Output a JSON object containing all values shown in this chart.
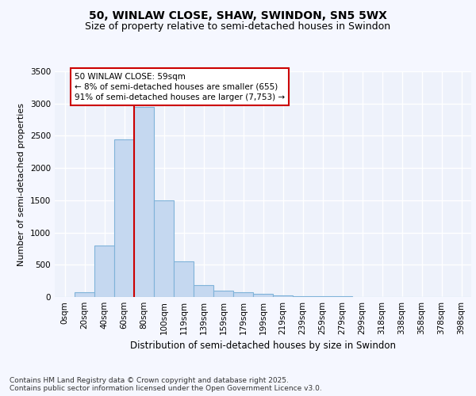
{
  "title1": "50, WINLAW CLOSE, SHAW, SWINDON, SN5 5WX",
  "title2": "Size of property relative to semi-detached houses in Swindon",
  "xlabel": "Distribution of semi-detached houses by size in Swindon",
  "ylabel": "Number of semi-detached properties",
  "categories": [
    "0sqm",
    "20sqm",
    "40sqm",
    "60sqm",
    "80sqm",
    "100sqm",
    "119sqm",
    "139sqm",
    "159sqm",
    "179sqm",
    "199sqm",
    "219sqm",
    "239sqm",
    "259sqm",
    "279sqm",
    "299sqm",
    "318sqm",
    "338sqm",
    "358sqm",
    "378sqm",
    "398sqm"
  ],
  "values": [
    5,
    75,
    800,
    2450,
    2950,
    1500,
    550,
    180,
    100,
    75,
    50,
    25,
    15,
    10,
    8,
    5,
    5,
    4,
    3,
    2,
    1
  ],
  "bar_color": "#c5d8f0",
  "bar_edge_color": "#7fb3d9",
  "red_line_index": 3.5,
  "annotation_text": "50 WINLAW CLOSE: 59sqm\n← 8% of semi-detached houses are smaller (655)\n91% of semi-detached houses are larger (7,753) →",
  "annotation_box_facecolor": "#ffffff",
  "annotation_box_edgecolor": "#cc0000",
  "ylim": [
    0,
    3500
  ],
  "yticks": [
    0,
    500,
    1000,
    1500,
    2000,
    2500,
    3000,
    3500
  ],
  "footnote": "Contains HM Land Registry data © Crown copyright and database right 2025.\nContains public sector information licensed under the Open Government Licence v3.0.",
  "bg_color": "#eef2fb",
  "grid_color": "#ffffff",
  "fig_facecolor": "#f5f7ff",
  "title1_fontsize": 10,
  "title2_fontsize": 9,
  "xlabel_fontsize": 8.5,
  "ylabel_fontsize": 8,
  "tick_fontsize": 7.5,
  "annotation_fontsize": 7.5,
  "footnote_fontsize": 6.5
}
